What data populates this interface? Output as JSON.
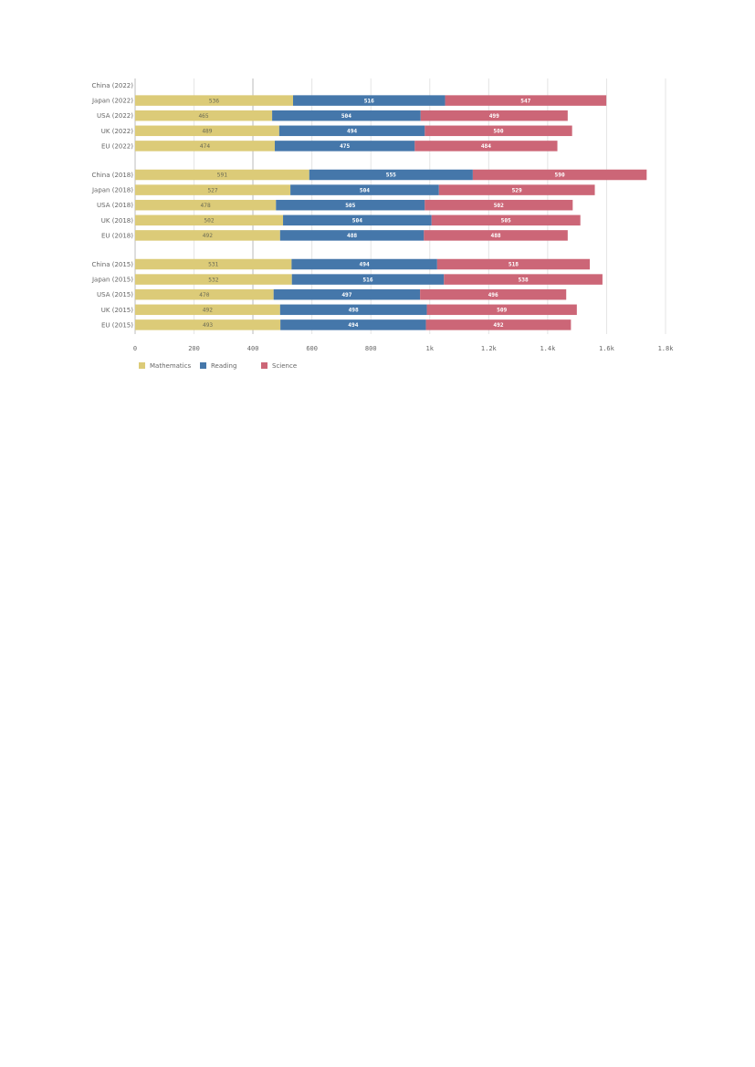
{
  "chart_data": {
    "type": "bar",
    "orientation": "horizontal",
    "stacked": true,
    "title": "",
    "xlabel": "",
    "ylabel": "",
    "xlim": [
      0,
      1800
    ],
    "x_ticks": [
      0,
      200,
      400,
      600,
      800,
      1000,
      1200,
      1400,
      1600,
      1800
    ],
    "x_tick_labels": [
      "0",
      "200",
      "400",
      "600",
      "800",
      "1k",
      "1.2k",
      "1.4k",
      "1.6k",
      "1.8k"
    ],
    "grid": true,
    "legend_position": "bottom-left",
    "colors": {
      "Mathematics": "#dccb78",
      "Reading": "#4577aa",
      "Science": "#cc6677"
    },
    "label_colors": {
      "Mathematics": "#6b6b55",
      "Reading": "#ffffff",
      "Science": "#ffffff"
    },
    "groups": [
      {
        "categories": [
          "China (2022)",
          "Japan (2022)",
          "USA (2022)",
          "UK (2022)",
          "EU (2022)"
        ]
      },
      {
        "categories": [
          "China (2018)",
          "Japan (2018)",
          "USA (2018)",
          "UK (2018)",
          "EU (2018)"
        ]
      },
      {
        "categories": [
          "China (2015)",
          "Japan (2015)",
          "USA (2015)",
          "UK (2015)",
          "EU (2015)"
        ]
      }
    ],
    "series": [
      {
        "name": "Mathematics",
        "values": [
          null,
          536,
          465,
          489,
          474,
          591,
          527,
          478,
          502,
          492,
          531,
          532,
          470,
          492,
          493
        ]
      },
      {
        "name": "Reading",
        "values": [
          null,
          516,
          504,
          494,
          475,
          555,
          504,
          505,
          504,
          488,
          494,
          516,
          497,
          498,
          494
        ]
      },
      {
        "name": "Science",
        "values": [
          null,
          547,
          499,
          500,
          484,
          590,
          529,
          502,
          505,
          488,
          518,
          538,
          496,
          509,
          492
        ]
      }
    ]
  }
}
